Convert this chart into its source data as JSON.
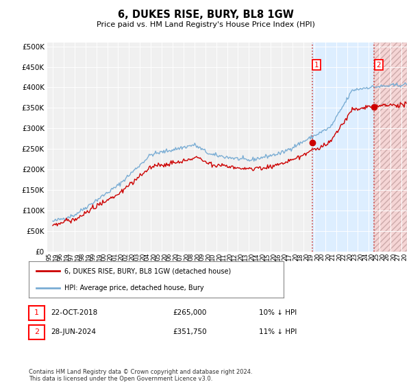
{
  "title": "6, DUKES RISE, BURY, BL8 1GW",
  "subtitle": "Price paid vs. HM Land Registry's House Price Index (HPI)",
  "ytick_values": [
    0,
    50000,
    100000,
    150000,
    200000,
    250000,
    300000,
    350000,
    400000,
    450000,
    500000
  ],
  "ylim": [
    0,
    510000
  ],
  "xlim_start": 1994.5,
  "xlim_end": 2027.5,
  "hpi_color": "#7aadd4",
  "price_color": "#cc0000",
  "sale1_x": 2018.81,
  "sale1_y": 265000,
  "sale2_x": 2024.49,
  "sale2_y": 351750,
  "sale1_date": "22-OCT-2018",
  "sale1_price": "£265,000",
  "sale1_note": "10% ↓ HPI",
  "sale2_date": "28-JUN-2024",
  "sale2_price": "£351,750",
  "sale2_note": "11% ↓ HPI",
  "legend1": "6, DUKES RISE, BURY, BL8 1GW (detached house)",
  "legend2": "HPI: Average price, detached house, Bury",
  "footer": "Contains HM Land Registry data © Crown copyright and database right 2024.\nThis data is licensed under the Open Government Licence v3.0.",
  "background_color": "#ffffff",
  "plot_bg_color": "#f0f0f0",
  "shade_color": "#ddeeff",
  "hatch_color": "#f5d5d5"
}
